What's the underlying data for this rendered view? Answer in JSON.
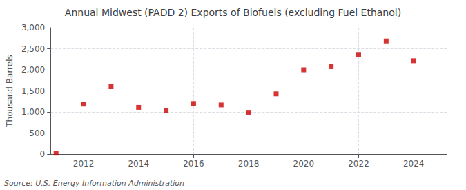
{
  "chart_data": {
    "type": "scatter",
    "title": "Annual Midwest (PADD 2) Exports of Biofuels (excluding Fuel Ethanol)",
    "ylabel": "Thousand Barrels",
    "source": "Source: U.S. Energy Information Administration",
    "x": [
      2011,
      2012,
      2013,
      2014,
      2015,
      2016,
      2017,
      2018,
      2019,
      2020,
      2021,
      2022,
      2023,
      2024
    ],
    "values": [
      22,
      1185,
      1598,
      1108,
      1040,
      1200,
      1165,
      990,
      1430,
      2000,
      2075,
      2365,
      2685,
      2215
    ],
    "color": "#cc0000",
    "marker": "square",
    "xlim": [
      2010.8,
      2025.2
    ],
    "xticks": [
      2012,
      2014,
      2016,
      2018,
      2020,
      2022,
      2024
    ],
    "ylim": [
      0,
      3000
    ],
    "yticks": [
      0,
      500,
      {
        "value": 1000,
        "label": "1,000"
      },
      {
        "value": 1500,
        "label": "1,500"
      },
      {
        "value": 2000,
        "label": "2,000"
      },
      {
        "value": 2500,
        "label": "2,500"
      },
      {
        "value": 3000,
        "label": "3,000"
      }
    ],
    "grid": true
  }
}
